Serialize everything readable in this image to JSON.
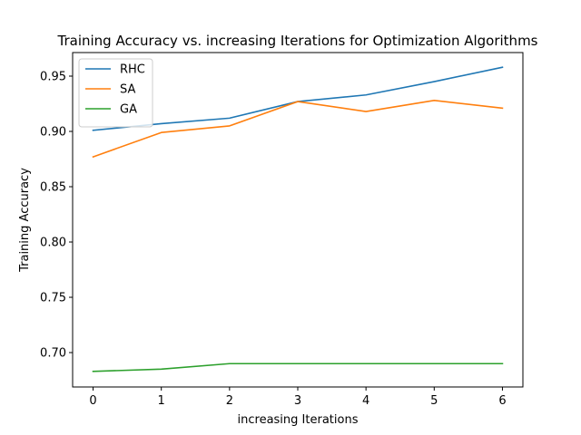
{
  "chart_data": {
    "type": "line",
    "title": "Training Accuracy vs. increasing Iterations for Optimization Algorithms",
    "xlabel": "increasing Iterations",
    "ylabel": "Training Accuracy",
    "x": [
      0,
      1,
      2,
      3,
      4,
      5,
      6
    ],
    "xlim": [
      -0.3,
      6.3
    ],
    "ylim": [
      0.6689,
      0.9713
    ],
    "xticks": [
      0,
      1,
      2,
      3,
      4,
      5,
      6
    ],
    "xtick_labels": [
      "0",
      "1",
      "2",
      "3",
      "4",
      "5",
      "6"
    ],
    "yticks": [
      0.7,
      0.75,
      0.8,
      0.85,
      0.9,
      0.95
    ],
    "ytick_labels": [
      "0.70",
      "0.75",
      "0.80",
      "0.85",
      "0.90",
      "0.95"
    ],
    "grid": false,
    "legend_position": "top-left",
    "series": [
      {
        "name": "RHC",
        "color": "#1f77b4",
        "values": [
          0.901,
          0.907,
          0.912,
          0.927,
          0.933,
          0.945,
          0.958
        ]
      },
      {
        "name": "SA",
        "color": "#ff7f0e",
        "values": [
          0.877,
          0.899,
          0.905,
          0.927,
          0.918,
          0.928,
          0.921
        ]
      },
      {
        "name": "GA",
        "color": "#2ca02c",
        "values": [
          0.683,
          0.685,
          0.69,
          0.69,
          0.69,
          0.69,
          0.69
        ]
      }
    ]
  }
}
